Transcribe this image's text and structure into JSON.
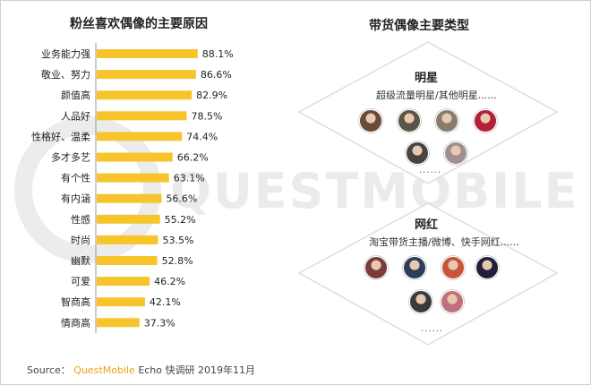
{
  "left_title": "粉丝喜欢偶像的主要原因",
  "right_title": "带货偶像主要类型",
  "chart_data": {
    "type": "bar",
    "orientation": "horizontal",
    "title": "粉丝喜欢偶像的主要原因",
    "categories": [
      "业务能力强",
      "敬业、努力",
      "颜值高",
      "人品好",
      "性格好、温柔",
      "多才多艺",
      "有个性",
      "有内涵",
      "性感",
      "时尚",
      "幽默",
      "可爱",
      "智商高",
      "情商高"
    ],
    "values": [
      88.1,
      86.6,
      82.9,
      78.5,
      74.4,
      66.2,
      63.1,
      56.6,
      55.2,
      53.5,
      52.8,
      46.2,
      42.1,
      37.3
    ],
    "value_labels": [
      "88.1%",
      "86.6%",
      "82.9%",
      "78.5%",
      "74.4%",
      "66.2%",
      "63.1%",
      "56.6%",
      "55.2%",
      "53.5%",
      "52.8%",
      "46.2%",
      "42.1%",
      "37.3%"
    ],
    "bar_color": "#f7c52b",
    "xlim": [
      0,
      100
    ]
  },
  "types": {
    "celebrity": {
      "label": "明星",
      "desc": "超级流量明星/其他明星......",
      "more": "......",
      "avatars": [
        {
          "name": "celebrity-avatar-1",
          "color": "#6b4a3a"
        },
        {
          "name": "celebrity-avatar-2",
          "color": "#5a5548"
        },
        {
          "name": "celebrity-avatar-3",
          "color": "#8a7b6a"
        },
        {
          "name": "celebrity-avatar-4",
          "color": "#b3203a"
        },
        {
          "name": "celebrity-avatar-5",
          "color": "#4a4440"
        },
        {
          "name": "celebrity-avatar-6",
          "color": "#a09090"
        }
      ]
    },
    "influencer": {
      "label": "网红",
      "desc": "淘宝带货主播/微博、快手网红......",
      "more": "......",
      "avatars": [
        {
          "name": "influencer-avatar-1",
          "color": "#7a3b3b"
        },
        {
          "name": "influencer-avatar-2",
          "color": "#2e3e5a"
        },
        {
          "name": "influencer-avatar-3",
          "color": "#c8533a"
        },
        {
          "name": "influencer-avatar-4",
          "color": "#20203a"
        },
        {
          "name": "influencer-avatar-5",
          "color": "#3a3a3a"
        },
        {
          "name": "influencer-avatar-6",
          "color": "#c0707a"
        }
      ]
    }
  },
  "watermark": "QUESTMOBILE",
  "source": {
    "prefix": "Source：",
    "brand": "QuestMobile",
    "rest": " Echo 快调研 2019年11月"
  },
  "colors": {
    "accent": "#f7c52b",
    "brand": "#e8a21a",
    "watermark": "#ececec",
    "diamond_border": "#dddddd"
  }
}
